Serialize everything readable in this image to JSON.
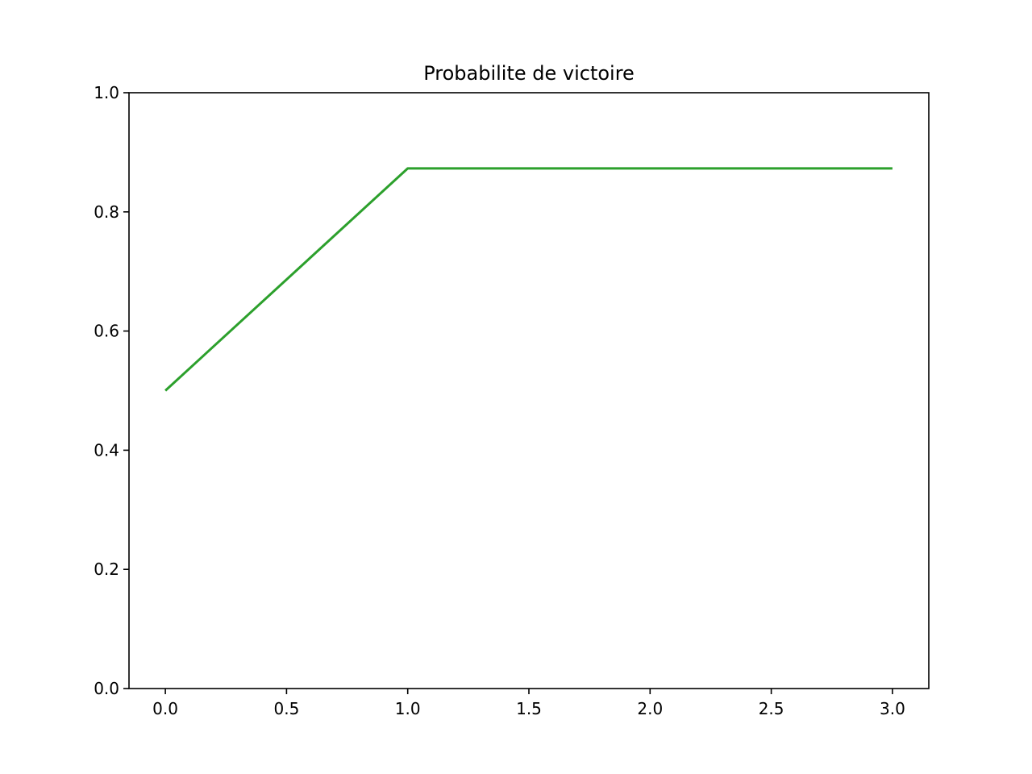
{
  "chart_data": {
    "type": "line",
    "title": "Probabilite de victoire",
    "xlabel": "",
    "ylabel": "",
    "xlim": [
      -0.15,
      3.15
    ],
    "ylim": [
      0.0,
      1.0
    ],
    "xticks": [
      0.0,
      0.5,
      1.0,
      1.5,
      2.0,
      2.5,
      3.0
    ],
    "xtick_labels": [
      "0.0",
      "0.5",
      "1.0",
      "1.5",
      "2.0",
      "2.5",
      "3.0"
    ],
    "yticks": [
      0.0,
      0.2,
      0.4,
      0.6,
      0.8,
      1.0
    ],
    "ytick_labels": [
      "0.0",
      "0.2",
      "0.4",
      "0.6",
      "0.8",
      "1.0"
    ],
    "grid": false,
    "series": [
      {
        "color": "#2ca02c",
        "x": [
          0,
          1,
          2,
          3
        ],
        "y": [
          0.5,
          0.873,
          0.873,
          0.873
        ]
      }
    ]
  }
}
